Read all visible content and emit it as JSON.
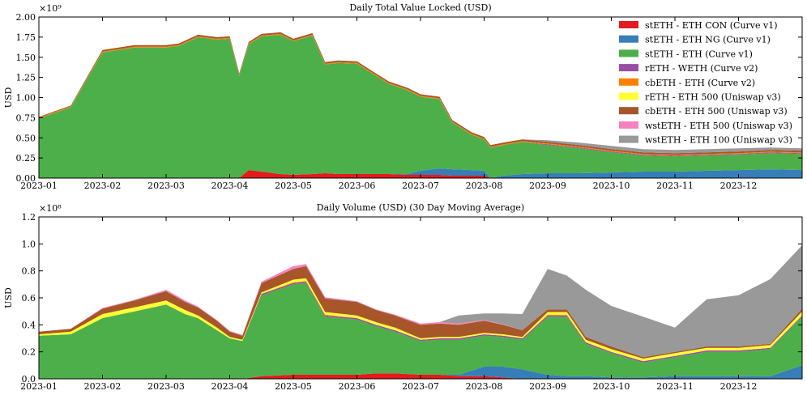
{
  "chart_data": [
    {
      "type": "area",
      "stacked": true,
      "title": "Daily Total Value Locked (USD)",
      "ylabel": "USD",
      "xlabel": "",
      "y_exponent_label": "×10⁹",
      "ylim": [
        0,
        2.0
      ],
      "yticks": [
        "0.00",
        "0.25",
        "0.50",
        "0.75",
        "1.00",
        "1.25",
        "1.50",
        "1.75",
        "2.00"
      ],
      "xticks": [
        "2023-01",
        "2023-02",
        "2023-03",
        "2023-04",
        "2023-05",
        "2023-06",
        "2023-07",
        "2023-08",
        "2023-09",
        "2023-10",
        "2023-11",
        "2023-12"
      ],
      "legend_position": "top-right",
      "x": [
        0,
        0.5,
        1,
        1.5,
        2,
        2.2,
        2.5,
        2.8,
        3,
        3.15,
        3.3,
        3.5,
        3.8,
        4,
        4.3,
        4.5,
        4.7,
        5,
        5.3,
        5.5,
        5.8,
        6,
        6.3,
        6.5,
        6.8,
        7,
        7.1,
        7.3,
        7.6,
        8,
        8.5,
        9,
        9.5,
        10,
        10.5,
        11,
        11.5,
        12
      ],
      "series": [
        {
          "name": "stETH - ETH CON (Curve v1)",
          "color": "#e41a1c",
          "values": [
            0,
            0,
            0,
            0,
            0,
            0,
            0,
            0,
            0,
            0,
            0.1,
            0.08,
            0.05,
            0.04,
            0.05,
            0.06,
            0.05,
            0.05,
            0.05,
            0.05,
            0.04,
            0.04,
            0.04,
            0.03,
            0.03,
            0.03,
            0,
            0,
            0,
            0,
            0,
            0,
            0,
            0,
            0,
            0,
            0,
            0
          ]
        },
        {
          "name": "stETH - ETH NG (Curve v1)",
          "color": "#377eb8",
          "values": [
            0,
            0,
            0,
            0,
            0,
            0,
            0,
            0,
            0,
            0,
            0,
            0,
            0,
            0,
            0,
            0,
            0,
            0,
            0,
            0,
            0.01,
            0.05,
            0.08,
            0.08,
            0.07,
            0.06,
            0,
            0.03,
            0.05,
            0.06,
            0.06,
            0.07,
            0.08,
            0.08,
            0.09,
            0.1,
            0.11,
            0.1
          ]
        },
        {
          "name": "stETH - ETH (Curve v1)",
          "color": "#4daf4a",
          "values": [
            0.74,
            0.88,
            1.56,
            1.62,
            1.62,
            1.64,
            1.75,
            1.72,
            1.73,
            1.27,
            1.56,
            1.68,
            1.73,
            1.66,
            1.72,
            1.35,
            1.38,
            1.37,
            1.22,
            1.12,
            1.04,
            0.92,
            0.86,
            0.58,
            0.44,
            0.39,
            0.38,
            0.38,
            0.4,
            0.35,
            0.31,
            0.25,
            0.2,
            0.19,
            0.19,
            0.19,
            0.2,
            0.2
          ]
        },
        {
          "name": "rETH - WETH (Curve v2)",
          "color": "#984ea3",
          "values": [
            0,
            0,
            0,
            0,
            0,
            0,
            0,
            0,
            0,
            0,
            0,
            0,
            0,
            0,
            0,
            0,
            0,
            0,
            0,
            0,
            0,
            0,
            0,
            0,
            0,
            0,
            0,
            0,
            0,
            0.01,
            0.01,
            0.01,
            0.01,
            0.01,
            0.01,
            0.01,
            0.01,
            0.01
          ]
        },
        {
          "name": "cbETH - ETH (Curve v2)",
          "color": "#ff7f00",
          "values": [
            0.01,
            0.01,
            0.01,
            0.01,
            0.01,
            0.01,
            0.01,
            0.01,
            0.01,
            0.01,
            0.01,
            0.01,
            0.01,
            0.01,
            0.01,
            0.01,
            0.01,
            0.01,
            0.01,
            0.01,
            0.01,
            0.01,
            0.01,
            0.01,
            0.01,
            0.01,
            0.01,
            0.01,
            0.01,
            0.01,
            0.01,
            0.01,
            0.01,
            0.01,
            0.01,
            0.01,
            0.01,
            0.01
          ]
        },
        {
          "name": "rETH - ETH 500 (Uniswap v3)",
          "color": "#ffff33",
          "values": [
            0,
            0,
            0,
            0,
            0,
            0,
            0,
            0,
            0,
            0,
            0,
            0,
            0,
            0,
            0,
            0,
            0,
            0,
            0,
            0,
            0,
            0,
            0,
            0,
            0,
            0,
            0,
            0,
            0,
            0,
            0,
            0,
            0,
            0,
            0,
            0,
            0,
            0
          ]
        },
        {
          "name": "cbETH - ETH 500 (Uniswap v3)",
          "color": "#a65628",
          "values": [
            0.01,
            0.01,
            0.02,
            0.02,
            0.02,
            0.02,
            0.02,
            0.02,
            0.02,
            0.02,
            0.02,
            0.02,
            0.02,
            0.02,
            0.02,
            0.02,
            0.02,
            0.02,
            0.02,
            0.02,
            0.02,
            0.02,
            0.02,
            0.02,
            0.02,
            0.02,
            0.02,
            0.02,
            0.02,
            0.02,
            0.02,
            0.02,
            0.02,
            0.02,
            0.02,
            0.02,
            0.02,
            0.02
          ]
        },
        {
          "name": "wstETH - ETH 500 (Uniswap v3)",
          "color": "#f781bf",
          "values": [
            0,
            0,
            0,
            0,
            0,
            0,
            0,
            0,
            0,
            0,
            0,
            0,
            0,
            0,
            0,
            0,
            0,
            0,
            0,
            0,
            0,
            0,
            0,
            0,
            0,
            0,
            0,
            0,
            0,
            0,
            0,
            0,
            0,
            0,
            0,
            0,
            0,
            0
          ]
        },
        {
          "name": "wstETH - ETH 100 (Uniswap v3)",
          "color": "#999999",
          "values": [
            0,
            0,
            0,
            0,
            0,
            0,
            0,
            0,
            0,
            0,
            0,
            0,
            0,
            0,
            0,
            0,
            0,
            0,
            0,
            0,
            0,
            0,
            0,
            0,
            0,
            0,
            0,
            0,
            0,
            0.02,
            0.03,
            0.04,
            0.04,
            0.04,
            0.04,
            0.04,
            0.03,
            0.03
          ]
        }
      ]
    },
    {
      "type": "area",
      "stacked": true,
      "title": "Daily Volume (USD) (30 Day Moving Average)",
      "ylabel": "USD",
      "xlabel": "",
      "y_exponent_label": "×10⁸",
      "ylim": [
        0,
        1.2
      ],
      "yticks": [
        "0.0",
        "0.2",
        "0.4",
        "0.6",
        "0.8",
        "1.0",
        "1.2"
      ],
      "xticks": [
        "2023-01",
        "2023-02",
        "2023-03",
        "2023-04",
        "2023-05",
        "2023-06",
        "2023-07",
        "2023-08",
        "2023-09",
        "2023-10",
        "2023-11",
        "2023-12"
      ],
      "x": [
        0,
        0.5,
        1,
        1.5,
        2,
        2.3,
        2.5,
        2.8,
        3,
        3.2,
        3.5,
        4,
        4.2,
        4.5,
        5,
        5.3,
        5.6,
        6,
        6.3,
        6.6,
        7,
        7.3,
        7.6,
        8,
        8.3,
        8.6,
        9,
        9.5,
        10,
        10.5,
        11,
        11.5,
        12
      ],
      "series": [
        {
          "name": "stETH - ETH CON (Curve v1)",
          "color": "#e41a1c",
          "values": [
            0,
            0,
            0,
            0,
            0,
            0,
            0,
            0,
            0,
            0,
            0.02,
            0.03,
            0.03,
            0.03,
            0.03,
            0.04,
            0.04,
            0.03,
            0.03,
            0.02,
            0.02,
            0.01,
            0,
            0,
            0,
            0,
            0,
            0,
            0,
            0,
            0,
            0,
            0
          ]
        },
        {
          "name": "stETH - ETH NG (Curve v1)",
          "color": "#377eb8",
          "values": [
            0,
            0,
            0,
            0,
            0,
            0,
            0,
            0,
            0,
            0,
            0,
            0,
            0,
            0,
            0,
            0,
            0,
            0,
            0,
            0.01,
            0.07,
            0.08,
            0.07,
            0.03,
            0.02,
            0.02,
            0.01,
            0.01,
            0.02,
            0.02,
            0.02,
            0.02,
            0.1
          ]
        },
        {
          "name": "stETH - ETH (Curve v1)",
          "color": "#4daf4a",
          "values": [
            0.32,
            0.33,
            0.45,
            0.5,
            0.55,
            0.48,
            0.45,
            0.36,
            0.3,
            0.28,
            0.6,
            0.67,
            0.68,
            0.43,
            0.41,
            0.35,
            0.31,
            0.25,
            0.26,
            0.26,
            0.23,
            0.22,
            0.22,
            0.43,
            0.44,
            0.24,
            0.18,
            0.11,
            0.14,
            0.18,
            0.18,
            0.2,
            0.36
          ]
        },
        {
          "name": "rETH - WETH (Curve v2)",
          "color": "#984ea3",
          "values": [
            0,
            0,
            0,
            0,
            0,
            0,
            0,
            0,
            0,
            0,
            0.01,
            0.01,
            0.01,
            0.01,
            0.01,
            0.01,
            0.01,
            0.01,
            0.01,
            0.01,
            0.01,
            0.01,
            0.01,
            0.01,
            0.01,
            0.01,
            0.01,
            0.01,
            0.01,
            0.01,
            0.01,
            0.01,
            0.01
          ]
        },
        {
          "name": "cbETH - ETH (Curve v2)",
          "color": "#ff7f00",
          "values": [
            0,
            0,
            0,
            0,
            0,
            0,
            0,
            0,
            0,
            0,
            0,
            0.005,
            0.005,
            0.005,
            0,
            0,
            0,
            0,
            0,
            0,
            0,
            0,
            0,
            0.005,
            0.005,
            0,
            0,
            0,
            0,
            0,
            0,
            0,
            0
          ]
        },
        {
          "name": "rETH - ETH 500 (Uniswap v3)",
          "color": "#ffff33",
          "values": [
            0.01,
            0.02,
            0.03,
            0.03,
            0.03,
            0.03,
            0.02,
            0.02,
            0.01,
            0.01,
            0.01,
            0.02,
            0.02,
            0.02,
            0.02,
            0.02,
            0.02,
            0.01,
            0.01,
            0.01,
            0.01,
            0.01,
            0.01,
            0.02,
            0.02,
            0.02,
            0.02,
            0.02,
            0.02,
            0.02,
            0.02,
            0.02,
            0.03
          ]
        },
        {
          "name": "cbETH - ETH 500 (Uniswap v3)",
          "color": "#a65628",
          "values": [
            0.02,
            0.02,
            0.04,
            0.05,
            0.07,
            0.06,
            0.06,
            0.05,
            0.04,
            0.03,
            0.07,
            0.08,
            0.09,
            0.1,
            0.1,
            0.09,
            0.09,
            0.1,
            0.1,
            0.09,
            0.09,
            0.07,
            0.05,
            0.02,
            0.02,
            0.02,
            0.02,
            0.01,
            0.01,
            0.01,
            0.01,
            0.01,
            0.02
          ]
        },
        {
          "name": "wstETH - ETH 500 (Uniswap v3)",
          "color": "#f781bf",
          "values": [
            0,
            0,
            0.005,
            0.005,
            0.01,
            0.01,
            0.005,
            0.005,
            0.005,
            0.005,
            0.01,
            0.02,
            0.015,
            0.01,
            0.005,
            0.005,
            0.005,
            0.01,
            0.01,
            0.01,
            0.005,
            0.005,
            0,
            0,
            0,
            0,
            0,
            0,
            0,
            0,
            0,
            0,
            0
          ]
        },
        {
          "name": "wstETH - ETH 100 (Uniswap v3)",
          "color": "#999999",
          "values": [
            0,
            0,
            0,
            0,
            0,
            0,
            0,
            0,
            0,
            0,
            0,
            0,
            0,
            0,
            0,
            0,
            0,
            0,
            0,
            0.06,
            0.05,
            0.08,
            0.12,
            0.3,
            0.25,
            0.35,
            0.3,
            0.3,
            0.18,
            0.35,
            0.38,
            0.48,
            0.47
          ]
        }
      ]
    }
  ]
}
